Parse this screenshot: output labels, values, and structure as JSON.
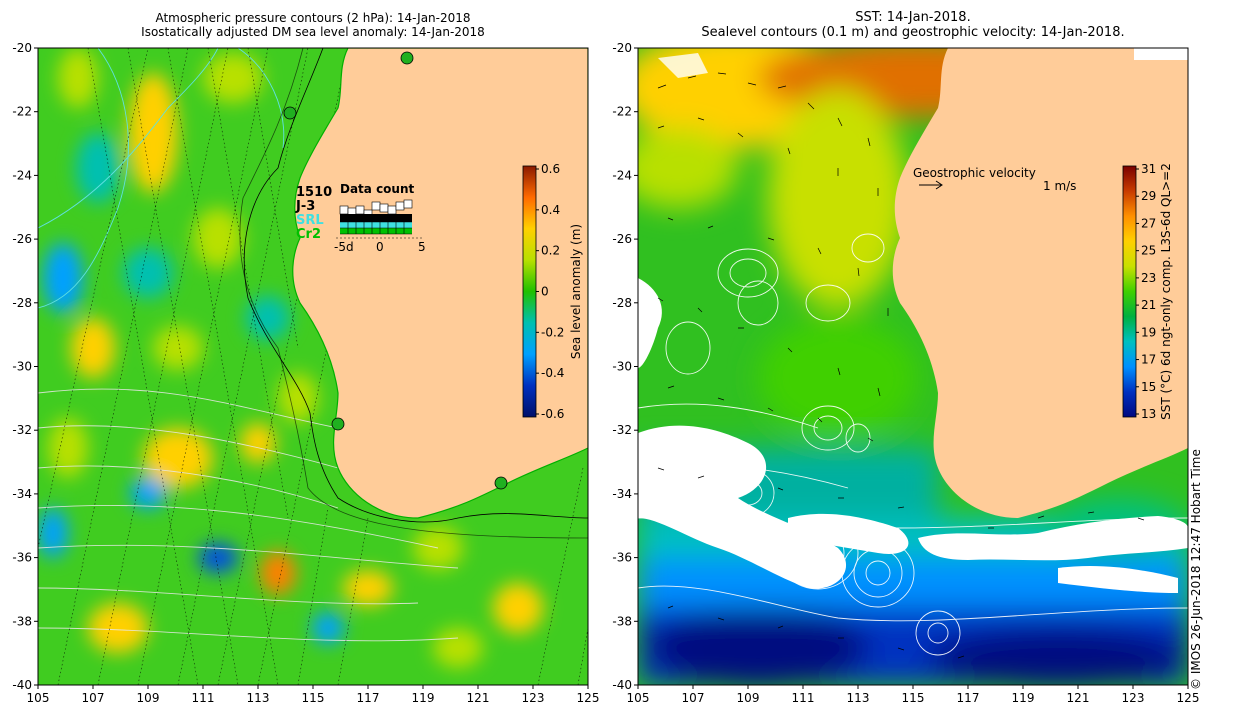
{
  "left_title": {
    "line1": "Atmospheric pressure contours (2 hPa): 14-Jan-2018",
    "line2": "Isostatically adjusted DM sea level anomaly: 14-Jan-2018"
  },
  "right_title": {
    "line1": "SST: 14-Jan-2018.",
    "line2": "Sealevel contours (0.1 m) and geostrophic velocity: 14-Jan-2018."
  },
  "axes": {
    "lat_ticks": [
      "-20",
      "-22",
      "-24",
      "-26",
      "-28",
      "-30",
      "-32",
      "-34",
      "-36",
      "-38",
      "-40"
    ],
    "lon_ticks": [
      "105",
      "107",
      "109",
      "111",
      "113",
      "115",
      "117",
      "119",
      "121",
      "123",
      "125"
    ]
  },
  "left_colorbar": {
    "label": "Sea level anomaly (m)",
    "ticks": [
      "0.6",
      "0.4",
      "0.2",
      "0",
      "-0.2",
      "-0.4",
      "-0.6"
    ],
    "colors": [
      "#8b1a00",
      "#ff6a00",
      "#ffd000",
      "#b8e000",
      "#20c000",
      "#00c0b0",
      "#00a0ff",
      "#0030c0",
      "#00106a"
    ]
  },
  "right_colorbar": {
    "label": "SST (°C) 6d ngt-only comp. L3S-6d QL>=2",
    "ticks": [
      "31",
      "29",
      "27",
      "25",
      "23",
      "21",
      "19",
      "17",
      "15",
      "13"
    ],
    "colors": [
      "#7a0000",
      "#c83c00",
      "#ff9000",
      "#ffd000",
      "#c8e000",
      "#40d000",
      "#00b040",
      "#00c0c0",
      "#0090ff",
      "#0030c0",
      "#000880"
    ]
  },
  "data_count": {
    "title": "Data count",
    "missions": [
      {
        "name": "1510",
        "color": "#000000"
      },
      {
        "name": "J-3",
        "color": "#000000"
      },
      {
        "name": "SRL",
        "color": "#40e0e0"
      },
      {
        "name": "Cr2",
        "color": "#00c000"
      }
    ],
    "axis_ticks": [
      "-5d",
      "0",
      "5"
    ]
  },
  "velocity_legend": {
    "label": "Geostrophic velocity",
    "scale": "1 m/s"
  },
  "copyright": "© IMOS 26-Jun-2018 12:47 Hobart Time"
}
